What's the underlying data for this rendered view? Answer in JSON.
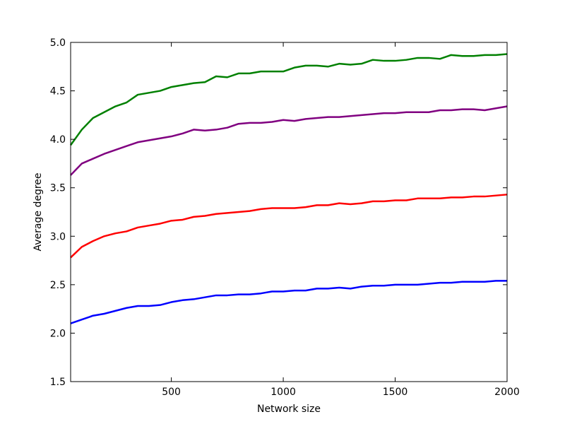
{
  "chart_data": {
    "type": "line",
    "x_label": "Network size",
    "y_label": "Average degree",
    "x": [
      50,
      100,
      150,
      200,
      250,
      300,
      350,
      400,
      450,
      500,
      550,
      600,
      650,
      700,
      750,
      800,
      850,
      900,
      950,
      1000,
      1050,
      1100,
      1150,
      1200,
      1250,
      1300,
      1350,
      1400,
      1450,
      1500,
      1550,
      1600,
      1650,
      1700,
      1750,
      1800,
      1850,
      1900,
      1950,
      2000
    ],
    "series": [
      {
        "color": "#0000ff",
        "values": [
          2.1,
          2.14,
          2.18,
          2.2,
          2.23,
          2.26,
          2.28,
          2.28,
          2.29,
          2.32,
          2.34,
          2.35,
          2.37,
          2.39,
          2.39,
          2.4,
          2.4,
          2.41,
          2.43,
          2.43,
          2.44,
          2.44,
          2.46,
          2.46,
          2.47,
          2.46,
          2.48,
          2.49,
          2.49,
          2.5,
          2.5,
          2.5,
          2.51,
          2.52,
          2.52,
          2.53,
          2.53,
          2.53,
          2.54,
          2.54
        ]
      },
      {
        "color": "#ff0000",
        "values": [
          2.78,
          2.89,
          2.95,
          3.0,
          3.03,
          3.05,
          3.09,
          3.11,
          3.13,
          3.16,
          3.17,
          3.2,
          3.21,
          3.23,
          3.24,
          3.25,
          3.26,
          3.28,
          3.29,
          3.29,
          3.29,
          3.3,
          3.32,
          3.32,
          3.34,
          3.33,
          3.34,
          3.36,
          3.36,
          3.37,
          3.37,
          3.39,
          3.39,
          3.39,
          3.4,
          3.4,
          3.41,
          3.41,
          3.42,
          3.43
        ]
      },
      {
        "color": "#800080",
        "values": [
          3.63,
          3.75,
          3.8,
          3.85,
          3.89,
          3.93,
          3.97,
          3.99,
          4.01,
          4.03,
          4.06,
          4.1,
          4.09,
          4.1,
          4.12,
          4.16,
          4.17,
          4.17,
          4.18,
          4.2,
          4.19,
          4.21,
          4.22,
          4.23,
          4.23,
          4.24,
          4.25,
          4.26,
          4.27,
          4.27,
          4.28,
          4.28,
          4.28,
          4.3,
          4.3,
          4.31,
          4.31,
          4.3,
          4.32,
          4.34
        ]
      },
      {
        "color": "#008000",
        "values": [
          3.94,
          4.1,
          4.22,
          4.28,
          4.34,
          4.38,
          4.46,
          4.48,
          4.5,
          4.54,
          4.56,
          4.58,
          4.59,
          4.65,
          4.64,
          4.68,
          4.68,
          4.7,
          4.7,
          4.7,
          4.74,
          4.76,
          4.76,
          4.75,
          4.78,
          4.77,
          4.78,
          4.82,
          4.81,
          4.81,
          4.82,
          4.84,
          4.84,
          4.83,
          4.87,
          4.86,
          4.86,
          4.87,
          4.87,
          4.88
        ]
      }
    ],
    "xlim": [
      50,
      2000
    ],
    "xticks": [
      500,
      1000,
      1500,
      2000
    ],
    "ylim": [
      1.5,
      5.0
    ],
    "yticks": [
      1.5,
      {
        "value": 2,
        "label": "2.0"
      },
      2.5,
      {
        "value": 3,
        "label": "3.0"
      },
      3.5,
      {
        "value": 4,
        "label": "4.0"
      },
      4.5,
      {
        "value": 5,
        "label": "5.0"
      }
    ]
  }
}
